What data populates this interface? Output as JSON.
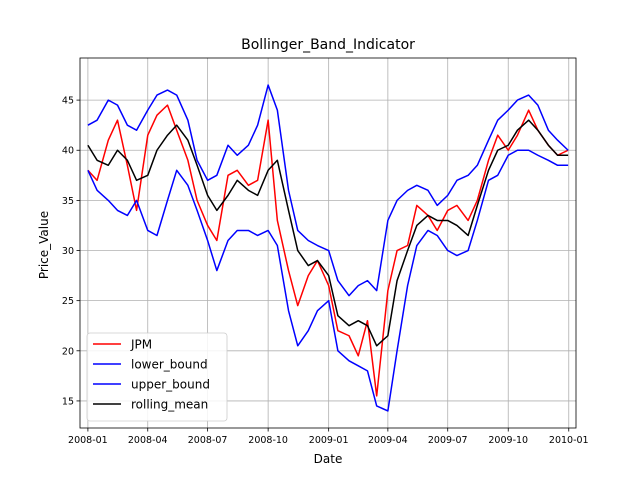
{
  "chart_data": {
    "type": "line",
    "title": "Bollinger_Band_Indicator",
    "xlabel": "Date",
    "ylabel": "Price_Value",
    "x_axis": "date",
    "xlim": [
      "2007-12-20",
      "2010-01-12"
    ],
    "ylim": [
      12.3,
      49.2
    ],
    "x_ticks": [
      "2008-01",
      "2008-04",
      "2008-07",
      "2008-10",
      "2009-01",
      "2009-04",
      "2009-07",
      "2009-10",
      "2010-01"
    ],
    "y_ticks": [
      15,
      20,
      25,
      30,
      35,
      40,
      45
    ],
    "grid": true,
    "legend_position": "lower-left",
    "x": [
      "2008-01-01",
      "2008-01-15",
      "2008-02-01",
      "2008-02-15",
      "2008-03-01",
      "2008-03-15",
      "2008-04-01",
      "2008-04-15",
      "2008-05-01",
      "2008-05-15",
      "2008-06-01",
      "2008-06-15",
      "2008-07-01",
      "2008-07-15",
      "2008-08-01",
      "2008-08-15",
      "2008-09-01",
      "2008-09-15",
      "2008-10-01",
      "2008-10-15",
      "2008-11-01",
      "2008-11-15",
      "2008-12-01",
      "2008-12-15",
      "2009-01-01",
      "2009-01-15",
      "2009-02-01",
      "2009-02-15",
      "2009-03-01",
      "2009-03-15",
      "2009-04-01",
      "2009-04-15",
      "2009-05-01",
      "2009-05-15",
      "2009-06-01",
      "2009-06-15",
      "2009-07-01",
      "2009-07-15",
      "2009-08-01",
      "2009-08-15",
      "2009-09-01",
      "2009-09-15",
      "2009-10-01",
      "2009-10-15",
      "2009-11-01",
      "2009-11-15",
      "2009-12-01",
      "2009-12-15",
      "2009-12-31"
    ],
    "series": [
      {
        "name": "JPM",
        "color": "#ff0000",
        "values": [
          38.0,
          37.0,
          41.0,
          43.0,
          38.5,
          34.0,
          41.5,
          43.5,
          44.5,
          42.0,
          39.0,
          35.0,
          32.5,
          31.0,
          37.5,
          38.0,
          36.5,
          37.0,
          43.0,
          33.0,
          28.0,
          24.5,
          27.5,
          29.0,
          26.5,
          22.0,
          21.5,
          19.5,
          23.0,
          15.5,
          26.0,
          30.0,
          30.5,
          34.5,
          33.5,
          32.0,
          34.0,
          34.5,
          33.0,
          35.0,
          39.0,
          41.5,
          40.0,
          41.5,
          44.0,
          42.0,
          40.5,
          39.5,
          40.0
        ]
      },
      {
        "name": "lower_bound",
        "color": "#0000ff",
        "values": [
          38.0,
          36.0,
          35.0,
          34.0,
          33.5,
          35.0,
          32.0,
          31.5,
          35.0,
          38.0,
          36.5,
          34.0,
          31.0,
          28.0,
          31.0,
          32.0,
          32.0,
          31.5,
          32.0,
          30.5,
          24.0,
          20.5,
          22.0,
          24.0,
          25.0,
          20.0,
          19.0,
          18.5,
          18.0,
          14.5,
          14.0,
          20.0,
          26.5,
          30.5,
          32.0,
          31.5,
          30.0,
          29.5,
          30.0,
          33.0,
          37.0,
          37.5,
          39.5,
          40.0,
          40.0,
          39.5,
          39.0,
          38.5,
          38.5
        ]
      },
      {
        "name": "upper_bound",
        "color": "#0000ff",
        "values": [
          42.5,
          43.0,
          45.0,
          44.5,
          42.5,
          42.0,
          44.0,
          45.5,
          46.0,
          45.5,
          43.0,
          39.0,
          37.0,
          37.5,
          40.5,
          39.5,
          40.5,
          42.5,
          46.5,
          44.0,
          36.0,
          32.0,
          31.0,
          30.5,
          30.0,
          27.0,
          25.5,
          26.5,
          27.0,
          26.0,
          33.0,
          35.0,
          36.0,
          36.5,
          36.0,
          34.5,
          35.5,
          37.0,
          37.5,
          38.5,
          41.0,
          43.0,
          44.0,
          45.0,
          45.5,
          44.5,
          42.0,
          41.0,
          40.0
        ]
      },
      {
        "name": "rolling_mean",
        "color": "#000000",
        "values": [
          40.5,
          39.0,
          38.5,
          40.0,
          39.0,
          37.0,
          37.5,
          40.0,
          41.5,
          42.5,
          41.0,
          38.5,
          35.5,
          34.0,
          35.5,
          37.0,
          36.0,
          35.5,
          38.0,
          39.0,
          34.0,
          30.0,
          28.5,
          29.0,
          27.5,
          23.5,
          22.5,
          23.0,
          22.5,
          20.5,
          21.5,
          27.0,
          30.0,
          32.5,
          33.5,
          33.0,
          33.0,
          32.5,
          31.5,
          34.5,
          38.0,
          40.0,
          40.5,
          42.0,
          43.0,
          42.0,
          40.5,
          39.5,
          39.5
        ]
      }
    ]
  }
}
